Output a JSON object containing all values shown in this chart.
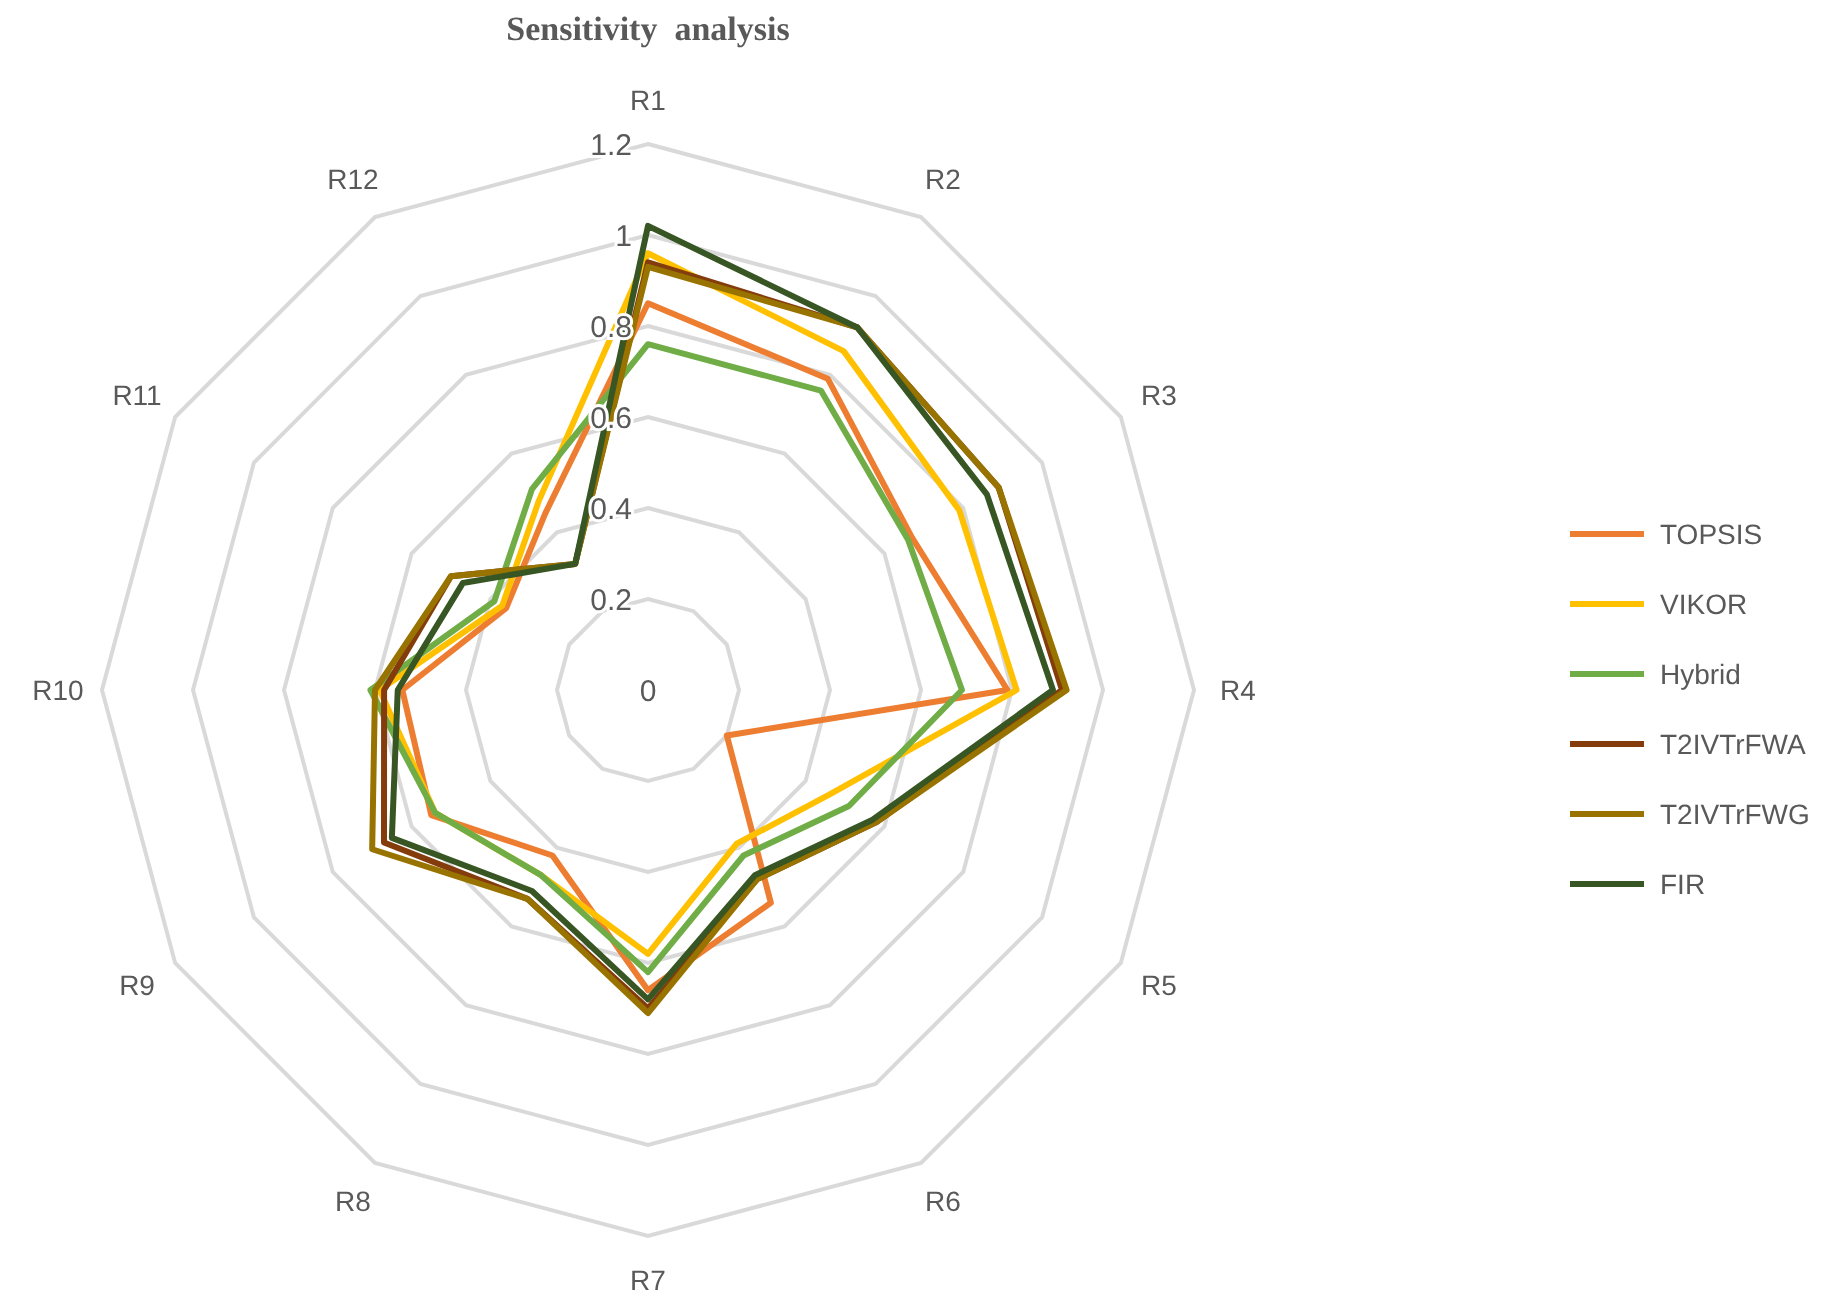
{
  "chart_data": {
    "type": "radar",
    "title": "Sensitivity  analysis",
    "categories": [
      "R1",
      "R2",
      "R3",
      "R4",
      "R5",
      "R6",
      "R7",
      "R8",
      "R9",
      "R10",
      "R11",
      "R12"
    ],
    "ylim": [
      0,
      1.2
    ],
    "yticks": [
      0,
      0.2,
      0.4,
      0.6,
      0.8,
      1,
      1.2
    ],
    "grid": true,
    "legend": "right",
    "series": [
      {
        "name": "TOPSIS",
        "color": "#ed7d31",
        "values": [
          0.85,
          0.79,
          0.67,
          0.79,
          0.2,
          0.54,
          0.66,
          0.42,
          0.55,
          0.54,
          0.36,
          0.45
        ]
      },
      {
        "name": "VIKOR",
        "color": "#ffc000",
        "values": [
          0.96,
          0.86,
          0.79,
          0.81,
          0.46,
          0.39,
          0.58,
          0.47,
          0.54,
          0.59,
          0.37,
          0.48
        ]
      },
      {
        "name": "Hybrid",
        "color": "#70ad47",
        "values": [
          0.76,
          0.76,
          0.66,
          0.69,
          0.51,
          0.42,
          0.62,
          0.47,
          0.54,
          0.61,
          0.39,
          0.51
        ]
      },
      {
        "name": "T2IVTrFWA",
        "color": "#843c0c",
        "values": [
          0.94,
          0.92,
          0.89,
          0.91,
          0.58,
          0.48,
          0.7,
          0.53,
          0.67,
          0.58,
          0.5,
          0.32
        ]
      },
      {
        "name": "T2IVTrFWG",
        "color": "#997300",
        "values": [
          0.93,
          0.92,
          0.89,
          0.92,
          0.58,
          0.48,
          0.71,
          0.53,
          0.7,
          0.6,
          0.5,
          0.32
        ]
      },
      {
        "name": "FIR",
        "color": "#375623",
        "values": [
          1.02,
          0.92,
          0.86,
          0.89,
          0.57,
          0.47,
          0.68,
          0.51,
          0.65,
          0.55,
          0.47,
          0.32
        ]
      }
    ]
  }
}
